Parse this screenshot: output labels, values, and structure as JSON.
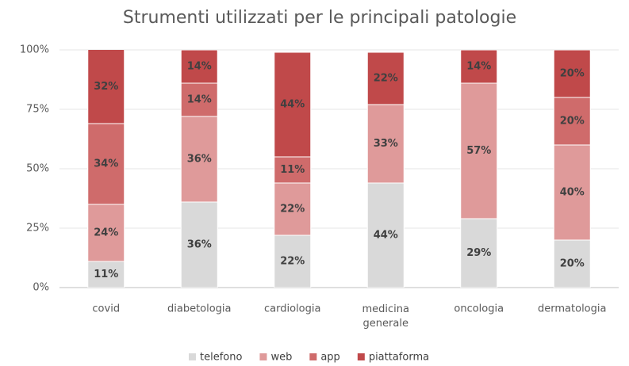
{
  "chart_data": {
    "type": "stacked_bar",
    "title": "Strumenti utilizzati per le principali patologie",
    "categories": [
      "covid",
      "diabetologia",
      "cardiologia",
      "medicina generale",
      "oncologia",
      "dermatologia"
    ],
    "series": [
      {
        "name": "telefono",
        "color": "#d9d9d9",
        "values": [
          11,
          36,
          22,
          44,
          29,
          20
        ],
        "value_labels": [
          "11%",
          "36%",
          "22%",
          "44%",
          "29%",
          "20%"
        ]
      },
      {
        "name": "web",
        "color": "#df9a9a",
        "values": [
          24,
          36,
          22,
          33,
          57,
          40
        ],
        "value_labels": [
          "24%",
          "36%",
          "22%",
          "33%",
          "57%",
          "40%"
        ]
      },
      {
        "name": "app",
        "color": "#cf6b6b",
        "values": [
          34,
          14,
          11,
          null,
          null,
          20
        ],
        "value_labels": [
          "34%",
          "14%",
          "11%",
          null,
          null,
          "20%"
        ]
      },
      {
        "name": "piattaforma",
        "color": "#c0494a",
        "values": [
          32,
          14,
          44,
          22,
          14,
          20
        ],
        "value_labels": [
          "32%",
          "14%",
          "44%",
          "22%",
          "14%",
          "20%"
        ]
      }
    ],
    "ylim": [
      0,
      100
    ],
    "yticks": [
      {
        "value": 0,
        "label": "0%"
      },
      {
        "value": 25,
        "label": "25%"
      },
      {
        "value": 50,
        "label": "50%"
      },
      {
        "value": 75,
        "label": "75%"
      },
      {
        "value": 100,
        "label": "100%"
      }
    ],
    "grid": true
  }
}
